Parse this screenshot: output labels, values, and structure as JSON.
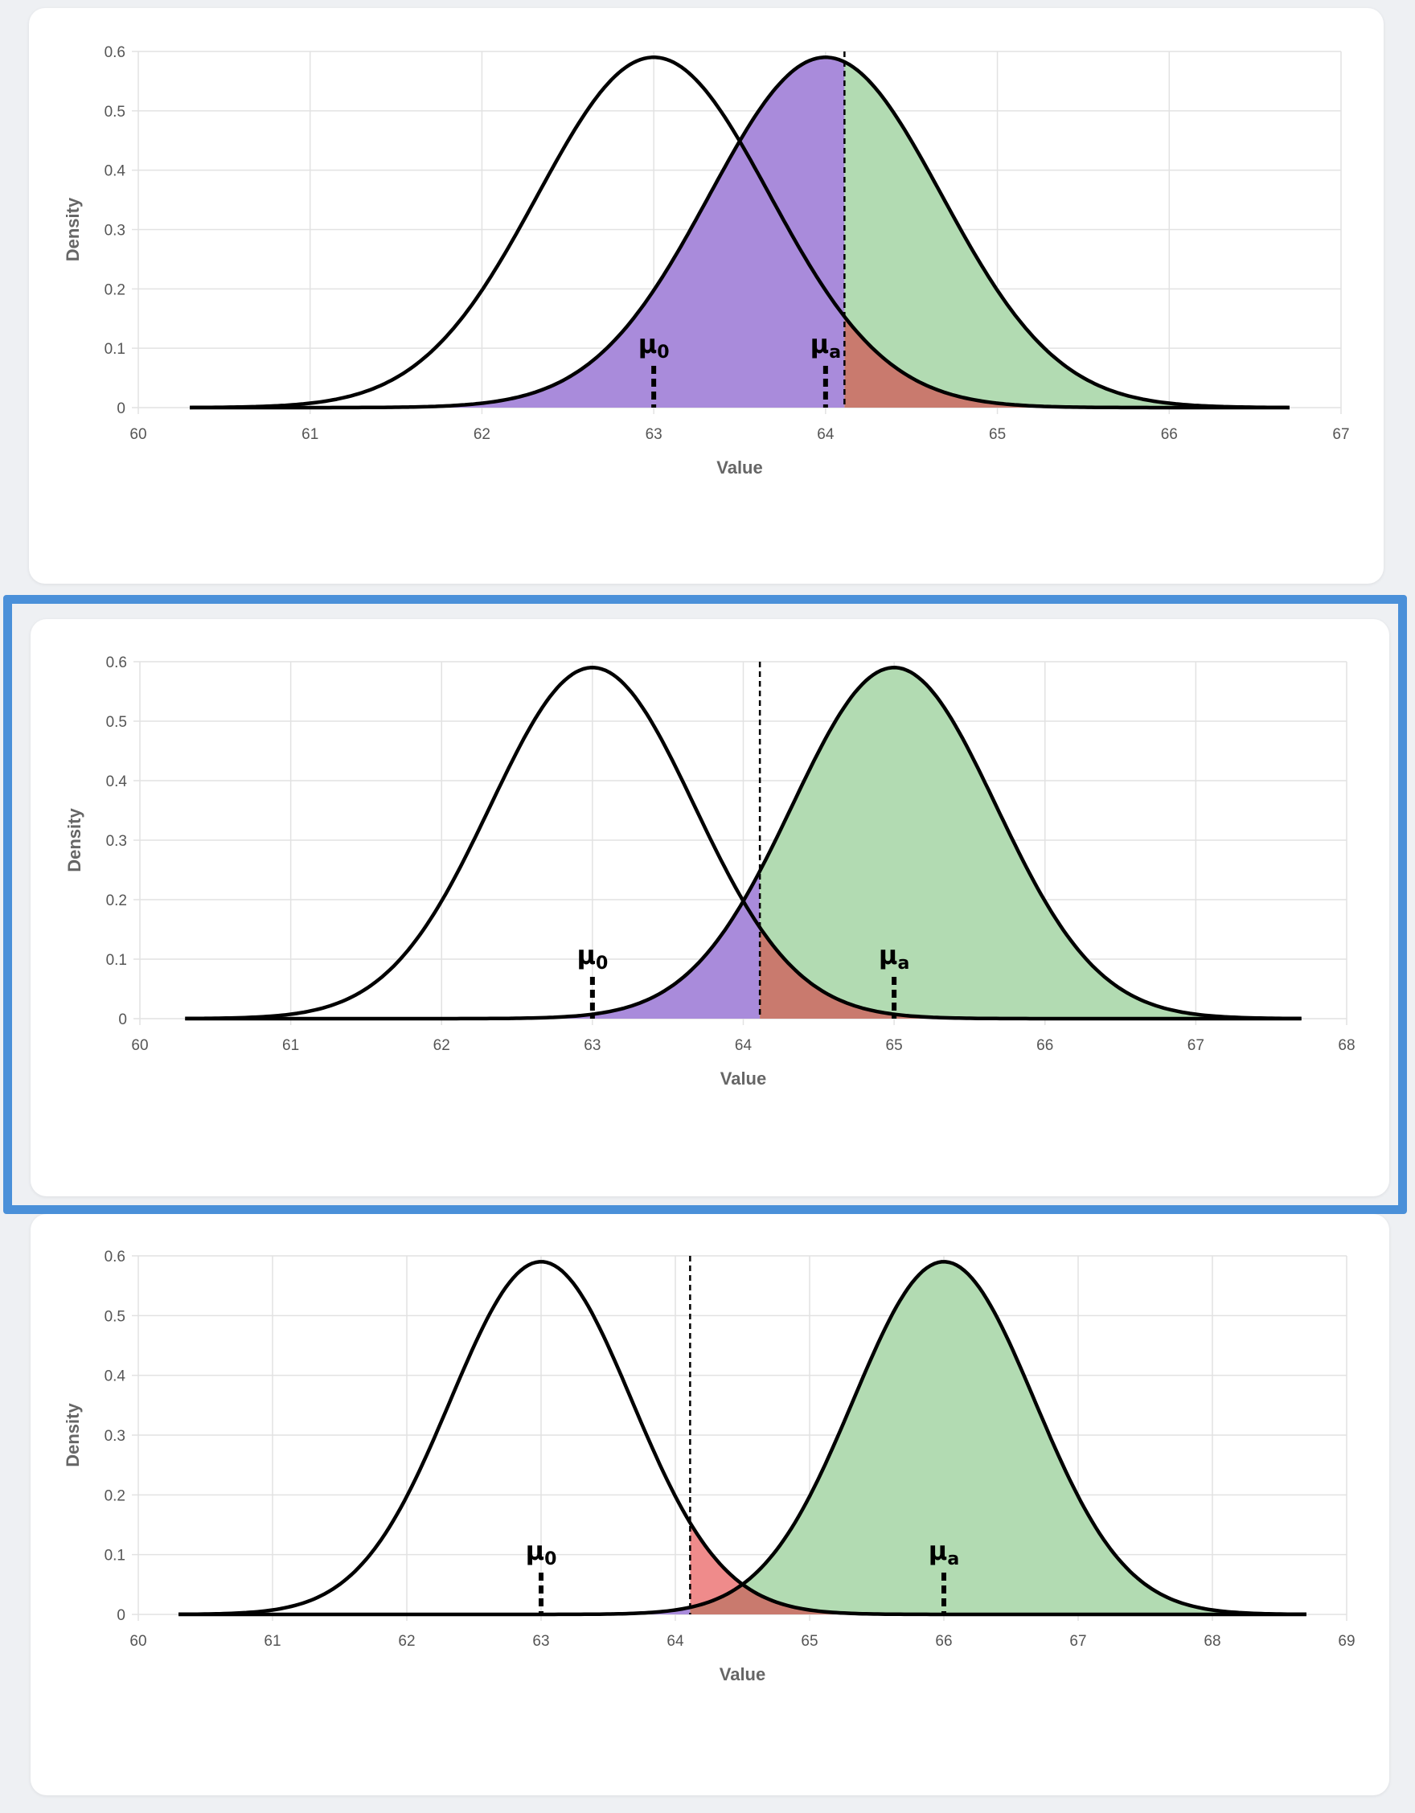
{
  "colors": {
    "power": "#b2dbb2",
    "beta": "#a98bdb",
    "alpha_overlap": "#c97a6e",
    "alpha_only": "#ef8b8b",
    "grid": "#e2e2e2",
    "curve": "#000000",
    "highlight": "#4a90d9"
  },
  "chart_data": [
    {
      "type": "area",
      "xlabel": "Value",
      "ylabel": "Density",
      "xlim": [
        60,
        67
      ],
      "ylim": [
        0,
        0.6
      ],
      "xticks": [
        "60",
        "61",
        "62",
        "63",
        "64",
        "65",
        "66",
        "67"
      ],
      "yticks": [
        "0",
        "0.1",
        "0.2",
        "0.3",
        "0.4",
        "0.5",
        "0.6"
      ],
      "null_mean": 63,
      "alt_mean": 64,
      "sd": 0.676,
      "critical_value": 64.11,
      "curve_range": [
        60.3,
        66.7
      ],
      "labels": {
        "null": "μ",
        "null_sub": "0",
        "alt": "μ",
        "alt_sub": "a"
      },
      "highlighted": false
    },
    {
      "type": "area",
      "xlabel": "Value",
      "ylabel": "Density",
      "xlim": [
        60,
        68
      ],
      "ylim": [
        0,
        0.6
      ],
      "xticks": [
        "60",
        "61",
        "62",
        "63",
        "64",
        "65",
        "66",
        "67",
        "68"
      ],
      "yticks": [
        "0",
        "0.1",
        "0.2",
        "0.3",
        "0.4",
        "0.5",
        "0.6"
      ],
      "null_mean": 63,
      "alt_mean": 65,
      "sd": 0.676,
      "critical_value": 64.11,
      "curve_range": [
        60.3,
        67.7
      ],
      "labels": {
        "null": "μ",
        "null_sub": "0",
        "alt": "μ",
        "alt_sub": "a"
      },
      "highlighted": true
    },
    {
      "type": "area",
      "xlabel": "Value",
      "ylabel": "Density",
      "xlim": [
        60,
        69
      ],
      "ylim": [
        0,
        0.6
      ],
      "xticks": [
        "60",
        "61",
        "62",
        "63",
        "64",
        "65",
        "66",
        "67",
        "68",
        "69"
      ],
      "yticks": [
        "0",
        "0.1",
        "0.2",
        "0.3",
        "0.4",
        "0.5",
        "0.6"
      ],
      "null_mean": 63,
      "alt_mean": 66,
      "sd": 0.676,
      "critical_value": 64.11,
      "curve_range": [
        60.3,
        68.7
      ],
      "labels": {
        "null": "μ",
        "null_sub": "0",
        "alt": "μ",
        "alt_sub": "a"
      },
      "highlighted": false
    }
  ]
}
